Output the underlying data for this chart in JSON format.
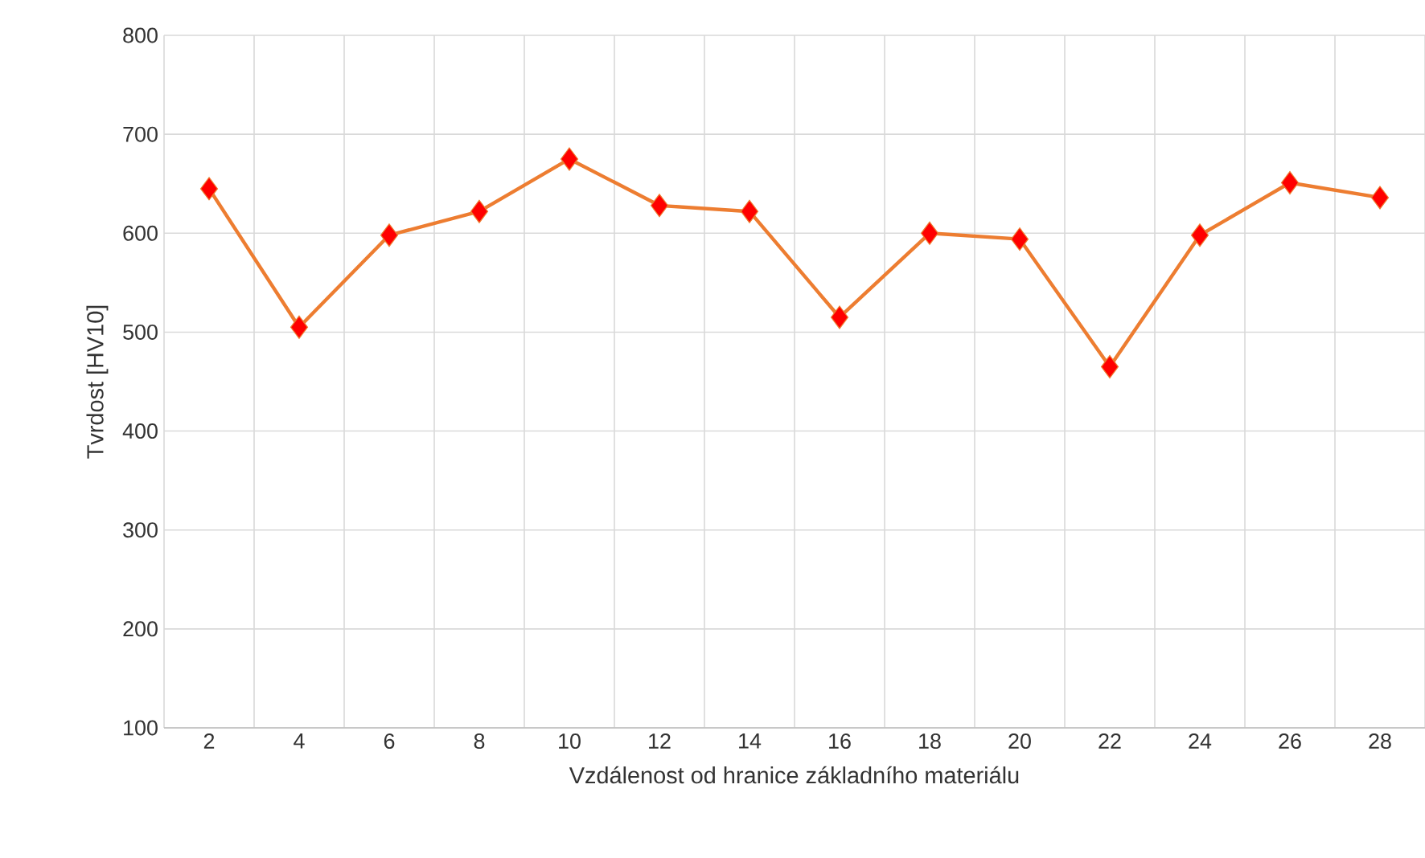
{
  "chart_data": {
    "type": "line",
    "xlabel": "Vzdálenost od hranice základního materiálu",
    "ylabel": "Tvrdost [HV10]",
    "categories": [
      "2",
      "4",
      "6",
      "8",
      "10",
      "12",
      "14",
      "16",
      "18",
      "20",
      "22",
      "24",
      "26",
      "28"
    ],
    "series": [
      {
        "color": "#ed7d31",
        "colors": [
          "#ff0000",
          "#ff0000",
          "#ff0000",
          "#ff0000",
          "#ff0000",
          "#ff0000",
          "#ff0000",
          "#ff0000",
          "#ff0000",
          "#ff0000",
          "#ff0000",
          "#ff0000",
          "#ff0000",
          "#ff0000"
        ],
        "values": [
          645,
          505,
          598,
          622,
          675,
          628,
          622,
          515,
          600,
          594,
          465,
          598,
          651,
          636
        ]
      }
    ],
    "ylim": [
      100,
      800
    ],
    "yticks": [
      100,
      200,
      300,
      400,
      500,
      600,
      700,
      800
    ],
    "grid": true,
    "marker": "diamond",
    "line_style": "solid"
  }
}
